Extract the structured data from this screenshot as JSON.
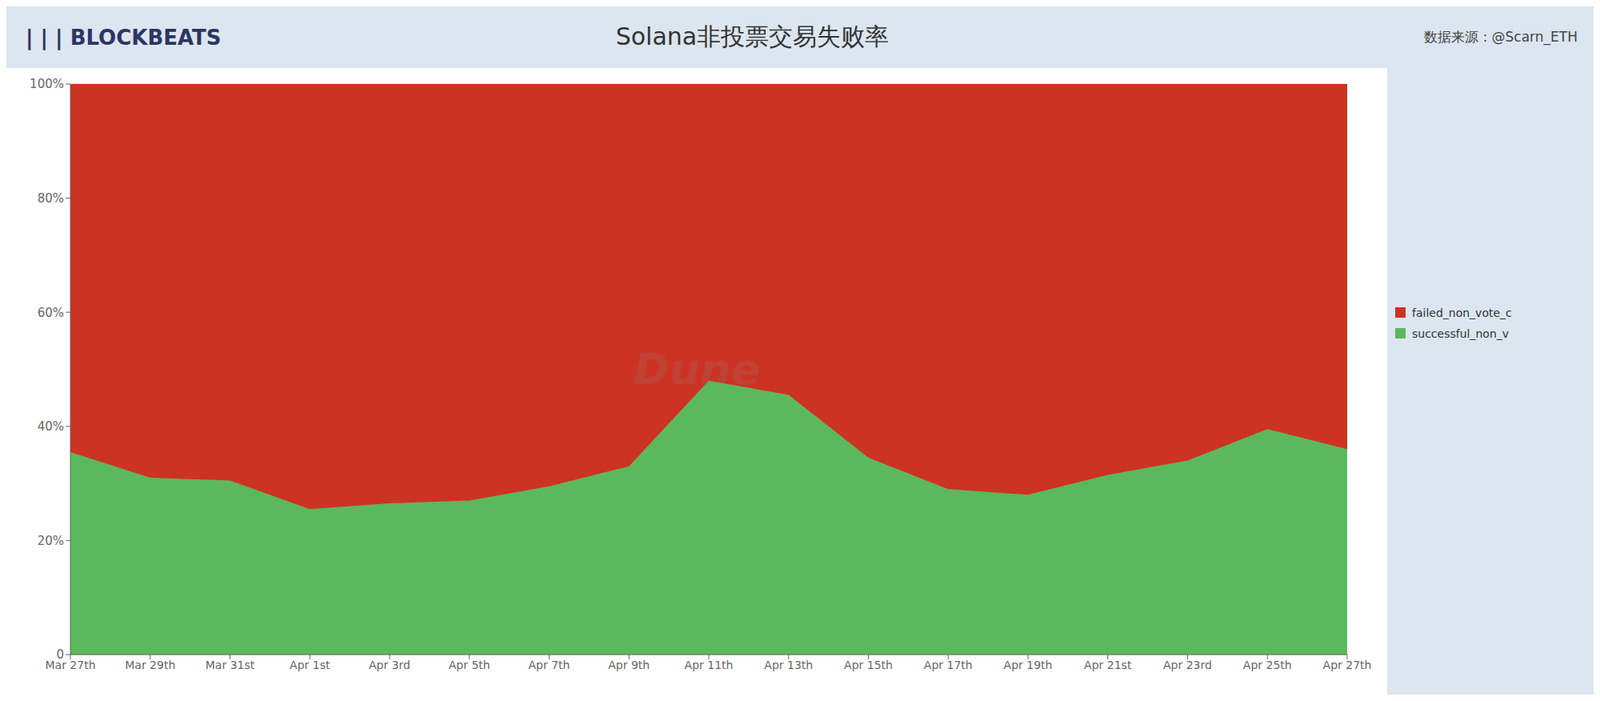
{
  "chart_data": {
    "type": "area",
    "title": "Solana非投票交易失败率",
    "annotations": [
      "| | | BLOCKBEATS",
      "数据来源：@Scarn_ETH",
      "Dune"
    ],
    "categories": [
      "Mar 27th",
      "Mar 29th",
      "Mar 31st",
      "Apr 1st",
      "Apr 3rd",
      "Apr 5th",
      "Apr 7th",
      "Apr 9th",
      "Apr 11th",
      "Apr 13th",
      "Apr 15th",
      "Apr 17th",
      "Apr 19th",
      "Apr 21st",
      "Apr 23rd",
      "Apr 25th",
      "Apr 27th"
    ],
    "series": [
      {
        "name": "successful_non_v",
        "color": "#5cb85c",
        "values": [
          0.355,
          0.31,
          0.305,
          0.255,
          0.265,
          0.27,
          0.295,
          0.33,
          0.48,
          0.455,
          0.345,
          0.29,
          0.28,
          0.315,
          0.34,
          0.395,
          0.36
        ]
      },
      {
        "name": "failed_non_vote_c",
        "color": "#cc3322",
        "values": [
          0.645,
          0.69,
          0.695,
          0.745,
          0.735,
          0.73,
          0.705,
          0.67,
          0.52,
          0.545,
          0.655,
          0.71,
          0.72,
          0.685,
          0.66,
          0.605,
          0.64
        ]
      }
    ],
    "ylim": [
      0,
      1.0
    ],
    "yticks": [
      0,
      {
        "value": 0.2,
        "label": "20%"
      },
      {
        "value": 0.4,
        "label": "40%"
      },
      {
        "value": 0.6,
        "label": "60%"
      },
      {
        "value": 0.8,
        "label": "80%"
      },
      {
        "value": 1.0,
        "label": "100%"
      }
    ],
    "stacked": true,
    "grid": true,
    "legend": "right"
  }
}
